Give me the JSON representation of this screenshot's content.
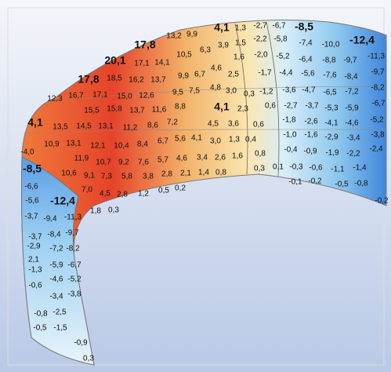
{
  "labels": [
    "13,2",
    "9,9",
    "17,8",
    "4,1",
    "1,3",
    "-2,7",
    "-6,7",
    "-8,5",
    "-12,4",
    "10,5",
    "6,3",
    "3,9",
    "1,5",
    "-2,2",
    "-5,8",
    "-7,4",
    "-10,0",
    "-11,3",
    "20,1",
    "17,1",
    "14,1",
    "1,6",
    "-2,0",
    "-5,2",
    "-6,4",
    "-8,8",
    "-9,7",
    "17,8",
    "18,5",
    "16,2",
    "13,7",
    "9,9",
    "6,7",
    "4,6",
    "2,5",
    "-1,7",
    "-4,4",
    "-5,6",
    "-7,6",
    "-8,4",
    "-9,7",
    "12,3",
    "16,7",
    "17,1",
    "15,0",
    "12,6",
    "9,5",
    "7,5",
    "4,8",
    "3,0",
    "0,3",
    "-1,2",
    "-3,6",
    "-4,7",
    "-6,5",
    "-7,2",
    "-8,2",
    "15,5",
    "15,8",
    "13,7",
    "11,6",
    "8,8",
    "4,1",
    "2,3",
    "0,6",
    "-2,7",
    "-3,7",
    "-5,3",
    "-5,9",
    "-6,7",
    "4,1",
    "13,5",
    "14,5",
    "13,1",
    "11,2",
    "8,6",
    "7,2",
    "4,5",
    "3,6",
    "0,6",
    "-1,8",
    "-2,6",
    "-4,1",
    "-4,6",
    "-5,2",
    "10,9",
    "13,1",
    "12,1",
    "10,4",
    "8,4",
    "6,7",
    "5,6",
    "4,1",
    "3,0",
    "1,3",
    "0,4",
    "-1,0",
    "-1,6",
    "-2,9",
    "-3,4",
    "-3,8",
    "-4,0",
    "11,9",
    "10,7",
    "9,2",
    "7,6",
    "5,7",
    "4,6",
    "3,4",
    "2,6",
    "1,6",
    "0,8",
    "-0,4",
    "-0,9",
    "-1,9",
    "-2,2",
    "-2,4",
    "-8,5",
    "10,6",
    "9,1",
    "7,3",
    "5,8",
    "3,8",
    "2,8",
    "2,1",
    "1,4",
    "0,8",
    "0,3",
    "0,1",
    "-0,3",
    "-0,6",
    "-1,1",
    "-1,4",
    "-6,6",
    "7,0",
    "4,5",
    "2,8",
    "1,2",
    "0,5",
    "0,2",
    "-0,1",
    "-0,2",
    "-0,5",
    "-0,8",
    "-0,2",
    "-5,6",
    "-12,4",
    "-3,7",
    "-9,4",
    "-11,3",
    "1,8",
    "0,3",
    "-3,7",
    "-8,4",
    "-9,7",
    "-2,9",
    "-7,2",
    "-8,2",
    "2,1",
    "-1,3",
    "-5,9",
    "-6,7",
    "-4,6",
    "-5,2",
    "-0,6",
    "-3,4",
    "-3,8",
    "-0,8",
    "-2,5",
    "-0,5",
    "-1,5",
    "-0,9",
    "0,3"
  ]
}
